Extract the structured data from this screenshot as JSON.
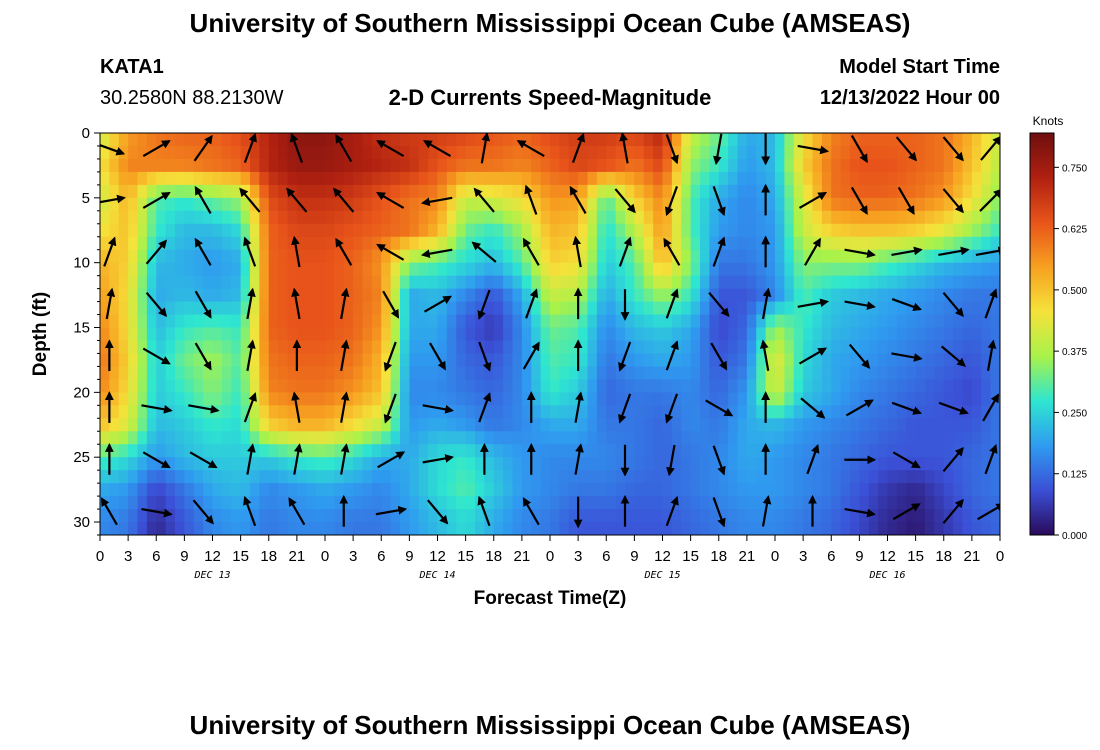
{
  "page": {
    "title": "University of Southern Mississippi Ocean Cube (AMSEAS)",
    "footer_title": "University of Southern Mississippi Ocean Cube (AMSEAS)",
    "station": "KATA1",
    "location": "30.2580N  88.2130W",
    "model_start_label": "Model Start Time",
    "model_start_value": "12/13/2022 Hour 00"
  },
  "chart_data": {
    "type": "heatmap",
    "title": "2-D Currents Speed-Magnitude",
    "xlabel": "Forecast Time(Z)",
    "ylabel": "Depth (ft)",
    "y_ticks": [
      "0",
      "5",
      "10",
      "15",
      "20",
      "25",
      "30"
    ],
    "y_range": [
      0,
      31
    ],
    "x_ticks": [
      "0",
      "3",
      "6",
      "9",
      "12",
      "15",
      "18",
      "21",
      "0",
      "3",
      "6",
      "9",
      "12",
      "15",
      "18",
      "21",
      "0",
      "3",
      "6",
      "9",
      "12",
      "15",
      "18",
      "21",
      "0",
      "3",
      "6",
      "9",
      "12",
      "15",
      "18",
      "21",
      "0"
    ],
    "x_range_hours": [
      0,
      96
    ],
    "date_labels": [
      {
        "text": "DEC 13",
        "hour": 12
      },
      {
        "text": "DEC 14",
        "hour": 36
      },
      {
        "text": "DEC 15",
        "hour": 60
      },
      {
        "text": "DEC 16",
        "hour": 84
      }
    ],
    "colorbar": {
      "unit": "Knots",
      "ticks": [
        "0.750",
        "0.625",
        "0.500",
        "0.375",
        "0.250",
        "0.125",
        "0.000"
      ],
      "tick_values": [
        0.75,
        0.625,
        0.5,
        0.375,
        0.25,
        0.125,
        0
      ],
      "range": [
        0,
        0.82
      ],
      "colors": [
        "#2a0a5a",
        "#3b4fd6",
        "#2f9bf0",
        "#2ee6d0",
        "#a8f24a",
        "#f5e23a",
        "#f7a020",
        "#e8541a",
        "#b02010",
        "#6e0f0f"
      ]
    },
    "speed_grid": {
      "depths_ft": [
        0,
        2.5,
        5,
        7.5,
        10,
        12.5,
        15,
        17.5,
        20,
        22.5,
        25,
        27.5,
        30
      ],
      "hours": [
        0,
        3,
        6,
        9,
        12,
        15,
        18,
        21,
        24,
        27,
        30,
        33,
        36,
        39,
        42,
        45,
        48,
        51,
        54,
        57,
        60,
        63,
        66,
        69,
        72,
        75,
        78,
        81,
        84,
        87,
        90,
        93,
        96
      ],
      "values": [
        [
          0.4,
          0.55,
          0.6,
          0.62,
          0.62,
          0.65,
          0.72,
          0.78,
          0.78,
          0.74,
          0.7,
          0.68,
          0.68,
          0.66,
          0.64,
          0.62,
          0.65,
          0.68,
          0.68,
          0.66,
          0.72,
          0.4,
          0.32,
          0.2,
          0.22,
          0.45,
          0.58,
          0.62,
          0.62,
          0.62,
          0.6,
          0.52,
          0.4
        ],
        [
          0.45,
          0.58,
          0.58,
          0.58,
          0.6,
          0.62,
          0.72,
          0.76,
          0.76,
          0.74,
          0.72,
          0.7,
          0.64,
          0.6,
          0.6,
          0.58,
          0.62,
          0.66,
          0.64,
          0.6,
          0.66,
          0.35,
          0.28,
          0.18,
          0.22,
          0.48,
          0.6,
          0.64,
          0.64,
          0.62,
          0.6,
          0.5,
          0.38
        ],
        [
          0.4,
          0.52,
          0.3,
          0.28,
          0.32,
          0.36,
          0.65,
          0.7,
          0.7,
          0.68,
          0.64,
          0.6,
          0.58,
          0.4,
          0.42,
          0.46,
          0.56,
          0.55,
          0.3,
          0.48,
          0.58,
          0.3,
          0.2,
          0.16,
          0.2,
          0.42,
          0.6,
          0.62,
          0.62,
          0.6,
          0.56,
          0.46,
          0.34
        ],
        [
          0.45,
          0.5,
          0.28,
          0.22,
          0.22,
          0.26,
          0.62,
          0.66,
          0.66,
          0.64,
          0.62,
          0.6,
          0.52,
          0.32,
          0.28,
          0.36,
          0.52,
          0.5,
          0.26,
          0.38,
          0.56,
          0.3,
          0.18,
          0.16,
          0.18,
          0.4,
          0.48,
          0.5,
          0.5,
          0.48,
          0.44,
          0.36,
          0.28
        ],
        [
          0.52,
          0.48,
          0.22,
          0.2,
          0.18,
          0.2,
          0.62,
          0.64,
          0.64,
          0.62,
          0.56,
          0.34,
          0.3,
          0.26,
          0.22,
          0.3,
          0.48,
          0.46,
          0.24,
          0.3,
          0.52,
          0.34,
          0.14,
          0.14,
          0.18,
          0.34,
          0.34,
          0.34,
          0.3,
          0.26,
          0.22,
          0.2,
          0.18
        ],
        [
          0.55,
          0.46,
          0.2,
          0.22,
          0.2,
          0.22,
          0.62,
          0.64,
          0.64,
          0.62,
          0.58,
          0.2,
          0.22,
          0.16,
          0.1,
          0.2,
          0.4,
          0.38,
          0.2,
          0.28,
          0.36,
          0.28,
          0.1,
          0.1,
          0.16,
          0.3,
          0.24,
          0.22,
          0.2,
          0.18,
          0.16,
          0.14,
          0.14
        ],
        [
          0.58,
          0.46,
          0.22,
          0.28,
          0.3,
          0.28,
          0.62,
          0.64,
          0.64,
          0.62,
          0.56,
          0.2,
          0.2,
          0.1,
          0.06,
          0.16,
          0.32,
          0.3,
          0.16,
          0.22,
          0.24,
          0.2,
          0.08,
          0.12,
          0.36,
          0.28,
          0.22,
          0.2,
          0.18,
          0.16,
          0.14,
          0.12,
          0.14
        ],
        [
          0.6,
          0.48,
          0.24,
          0.32,
          0.36,
          0.3,
          0.6,
          0.62,
          0.62,
          0.6,
          0.52,
          0.18,
          0.18,
          0.12,
          0.1,
          0.16,
          0.3,
          0.28,
          0.14,
          0.18,
          0.2,
          0.18,
          0.1,
          0.14,
          0.44,
          0.26,
          0.2,
          0.18,
          0.16,
          0.14,
          0.12,
          0.1,
          0.14
        ],
        [
          0.58,
          0.46,
          0.24,
          0.28,
          0.34,
          0.28,
          0.58,
          0.6,
          0.6,
          0.56,
          0.5,
          0.16,
          0.16,
          0.14,
          0.12,
          0.16,
          0.28,
          0.24,
          0.12,
          0.14,
          0.14,
          0.16,
          0.12,
          0.18,
          0.42,
          0.24,
          0.2,
          0.16,
          0.14,
          0.12,
          0.1,
          0.08,
          0.14
        ],
        [
          0.5,
          0.42,
          0.22,
          0.24,
          0.28,
          0.26,
          0.48,
          0.52,
          0.52,
          0.46,
          0.4,
          0.18,
          0.2,
          0.18,
          0.14,
          0.16,
          0.2,
          0.2,
          0.14,
          0.14,
          0.12,
          0.16,
          0.14,
          0.2,
          0.22,
          0.18,
          0.16,
          0.14,
          0.12,
          0.1,
          0.1,
          0.1,
          0.14
        ],
        [
          0.3,
          0.26,
          0.18,
          0.22,
          0.24,
          0.24,
          0.24,
          0.28,
          0.3,
          0.26,
          0.2,
          0.2,
          0.26,
          0.28,
          0.22,
          0.18,
          0.16,
          0.16,
          0.16,
          0.14,
          0.12,
          0.14,
          0.16,
          0.2,
          0.18,
          0.16,
          0.14,
          0.12,
          0.1,
          0.1,
          0.1,
          0.12,
          0.14
        ],
        [
          0.2,
          0.18,
          0.08,
          0.14,
          0.2,
          0.22,
          0.16,
          0.18,
          0.2,
          0.18,
          0.16,
          0.2,
          0.26,
          0.3,
          0.24,
          0.18,
          0.16,
          0.14,
          0.14,
          0.12,
          0.12,
          0.14,
          0.16,
          0.18,
          0.18,
          0.16,
          0.14,
          0.1,
          0.06,
          0.04,
          0.08,
          0.12,
          0.14
        ],
        [
          0.16,
          0.14,
          0.04,
          0.1,
          0.16,
          0.18,
          0.14,
          0.16,
          0.16,
          0.14,
          0.14,
          0.18,
          0.22,
          0.26,
          0.2,
          0.16,
          0.14,
          0.1,
          0.1,
          0.1,
          0.1,
          0.12,
          0.14,
          0.16,
          0.16,
          0.14,
          0.12,
          0.08,
          0.04,
          0.02,
          0.06,
          0.1,
          0.12
        ]
      ]
    },
    "vectors": {
      "depths_ft": [
        0,
        4,
        8,
        12,
        16,
        20,
        24,
        28
      ],
      "hours": [
        1,
        6,
        11,
        16,
        21,
        26,
        31,
        36,
        41,
        46,
        51,
        56,
        61,
        66,
        71,
        76,
        81,
        86,
        91,
        95
      ],
      "dir_deg": [
        [
          110,
          60,
          35,
          20,
          340,
          330,
          300,
          300,
          10,
          300,
          20,
          350,
          160,
          190,
          180,
          100,
          150,
          140,
          140,
          40
        ],
        [
          80,
          60,
          330,
          320,
          320,
          320,
          300,
          260,
          320,
          340,
          330,
          140,
          200,
          160,
          0,
          60,
          150,
          150,
          140,
          45
        ],
        [
          20,
          40,
          330,
          340,
          350,
          330,
          300,
          260,
          310,
          330,
          350,
          20,
          330,
          20,
          0,
          30,
          100,
          80,
          80,
          80
        ],
        [
          10,
          140,
          150,
          10,
          350,
          10,
          150,
          60,
          200,
          20,
          0,
          180,
          20,
          140,
          10,
          80,
          100,
          110,
          140,
          20
        ],
        [
          0,
          120,
          150,
          10,
          0,
          10,
          200,
          150,
          160,
          30,
          0,
          200,
          20,
          150,
          350,
          60,
          140,
          100,
          130,
          10
        ],
        [
          0,
          100,
          100,
          20,
          350,
          10,
          200,
          100,
          20,
          0,
          10,
          200,
          200,
          120,
          0,
          130,
          60,
          110,
          110,
          30
        ],
        [
          0,
          120,
          120,
          10,
          10,
          10,
          60,
          80,
          0,
          0,
          10,
          180,
          190,
          160,
          0,
          20,
          90,
          120,
          40,
          20
        ],
        [
          330,
          100,
          140,
          340,
          330,
          0,
          80,
          140,
          340,
          330,
          180,
          0,
          20,
          160,
          10,
          0,
          100,
          60,
          40,
          60
        ]
      ]
    }
  }
}
